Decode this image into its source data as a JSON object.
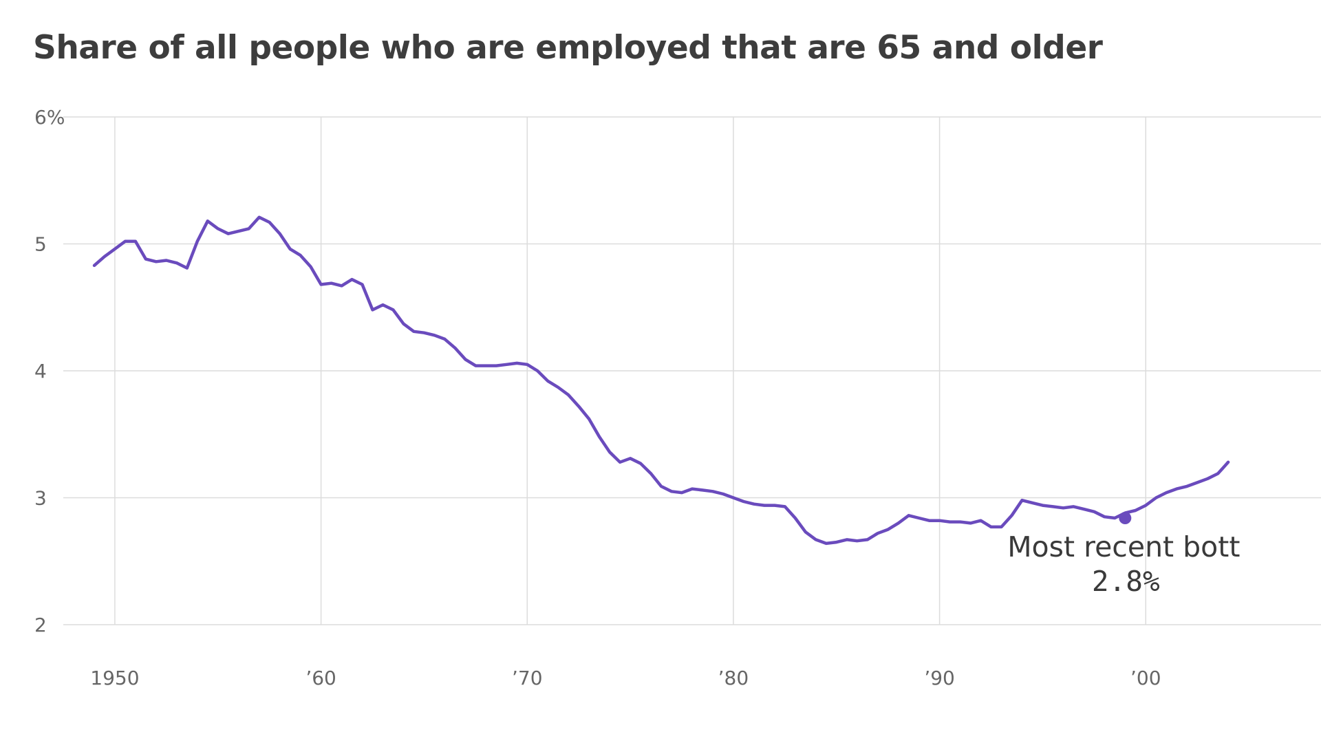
{
  "chart_data": {
    "type": "line",
    "title": "Share of all people who are employed that are 65 and older",
    "xlabel": "",
    "ylabel": "",
    "ylim": [
      2,
      6
    ],
    "xlim": [
      1947.5,
      2008.5
    ],
    "grid": true,
    "y_ticks": [
      {
        "value": 2,
        "label": "2"
      },
      {
        "value": 3,
        "label": "3"
      },
      {
        "value": 4,
        "label": "4"
      },
      {
        "value": 5,
        "label": "5"
      },
      {
        "value": 6,
        "label": "6%"
      }
    ],
    "x_ticks": [
      {
        "value": 1950,
        "label": "1950"
      },
      {
        "value": 1960,
        "label": "’60"
      },
      {
        "value": 1970,
        "label": "’70"
      },
      {
        "value": 1980,
        "label": "’80"
      },
      {
        "value": 1990,
        "label": "’90"
      },
      {
        "value": 2000,
        "label": "’00"
      }
    ],
    "series": [
      {
        "color": "#6a4bbd",
        "x": [
          1949.0,
          1949.5,
          1950.0,
          1950.5,
          1951.0,
          1951.5,
          1952.0,
          1952.5,
          1953.0,
          1953.5,
          1954.0,
          1954.5,
          1955.0,
          1955.5,
          1956.0,
          1956.5,
          1957.0,
          1957.5,
          1958.0,
          1958.5,
          1959.0,
          1959.5,
          1960.0,
          1960.5,
          1961.0,
          1961.5,
          1962.0,
          1962.5,
          1963.0,
          1963.5,
          1964.0,
          1964.5,
          1965.0,
          1965.5,
          1966.0,
          1966.5,
          1967.0,
          1967.5,
          1968.0,
          1968.5,
          1969.0,
          1969.5,
          1970.0,
          1970.5,
          1971.0,
          1971.5,
          1972.0,
          1972.5,
          1973.0,
          1973.5,
          1974.0,
          1974.5,
          1975.0,
          1975.5,
          1976.0,
          1976.5,
          1977.0,
          1977.5,
          1978.0,
          1978.5,
          1979.0,
          1979.5,
          1980.0,
          1980.5,
          1981.0,
          1981.5,
          1982.0,
          1982.5,
          1983.0,
          1983.5,
          1984.0,
          1984.5,
          1985.0,
          1985.5,
          1986.0,
          1986.5,
          1987.0,
          1987.5,
          1988.0,
          1988.5,
          1989.0,
          1989.5,
          1990.0,
          1990.5,
          1991.0,
          1991.5,
          1992.0,
          1992.5,
          1993.0,
          1993.5,
          1994.0,
          1994.5,
          1995.0,
          1995.5,
          1996.0,
          1996.5,
          1997.0,
          1997.5,
          1998.0,
          1998.5,
          1999.0,
          1999.5,
          2000.0,
          2000.5,
          2001.0,
          2001.5,
          2002.0,
          2002.5,
          2003.0,
          2003.5,
          2004.0
        ],
        "y": [
          4.83,
          4.9,
          4.96,
          5.02,
          5.02,
          4.88,
          4.86,
          4.87,
          4.85,
          4.81,
          5.02,
          5.18,
          5.12,
          5.08,
          5.1,
          5.12,
          5.21,
          5.17,
          5.08,
          4.96,
          4.91,
          4.82,
          4.68,
          4.69,
          4.67,
          4.72,
          4.68,
          4.48,
          4.52,
          4.48,
          4.37,
          4.31,
          4.3,
          4.28,
          4.25,
          4.18,
          4.09,
          4.04,
          4.04,
          4.04,
          4.05,
          4.06,
          4.05,
          4.0,
          3.92,
          3.87,
          3.81,
          3.72,
          3.62,
          3.48,
          3.36,
          3.28,
          3.31,
          3.27,
          3.19,
          3.09,
          3.05,
          3.04,
          3.07,
          3.06,
          3.05,
          3.03,
          3.0,
          2.97,
          2.95,
          2.94,
          2.94,
          2.93,
          2.84,
          2.73,
          2.67,
          2.64,
          2.65,
          2.67,
          2.66,
          2.67,
          2.72,
          2.75,
          2.8,
          2.86,
          2.84,
          2.82,
          2.82,
          2.81,
          2.81,
          2.8,
          2.82,
          2.77,
          2.77,
          2.86,
          2.98,
          2.96,
          2.94,
          2.93,
          2.92,
          2.93,
          2.91,
          2.89,
          2.85,
          2.84,
          2.88,
          2.9,
          2.94,
          3.0,
          3.04,
          3.07,
          3.09,
          3.12,
          3.15,
          3.19,
          3.28
        ]
      }
    ],
    "annotations": [
      {
        "x": 1999.0,
        "y": 2.84,
        "label": "Most recent bott",
        "value_label": "2.8%"
      }
    ]
  }
}
